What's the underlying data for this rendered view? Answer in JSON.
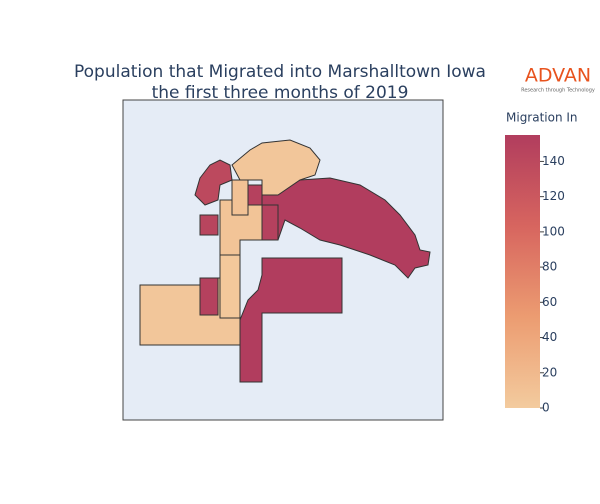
{
  "chart_data": {
    "type": "choropleth",
    "title": [
      "Population that Migrated into Marshalltown Iowa",
      "the first three months of 2019"
    ],
    "colorbar_title": "Migration In",
    "colorscale": [
      "#f3cb9e",
      "#ec9c71",
      "#d7655f",
      "#b13d5e"
    ],
    "zlim": [
      0,
      155
    ],
    "zticks": [
      0,
      20,
      40,
      60,
      80,
      100,
      120,
      140
    ],
    "values": [
      155,
      5,
      155,
      5,
      150,
      3,
      140,
      145,
      8,
      150,
      150,
      10
    ]
  },
  "logo": {
    "text": "ADVAN",
    "tagline": "Research through Technology"
  }
}
